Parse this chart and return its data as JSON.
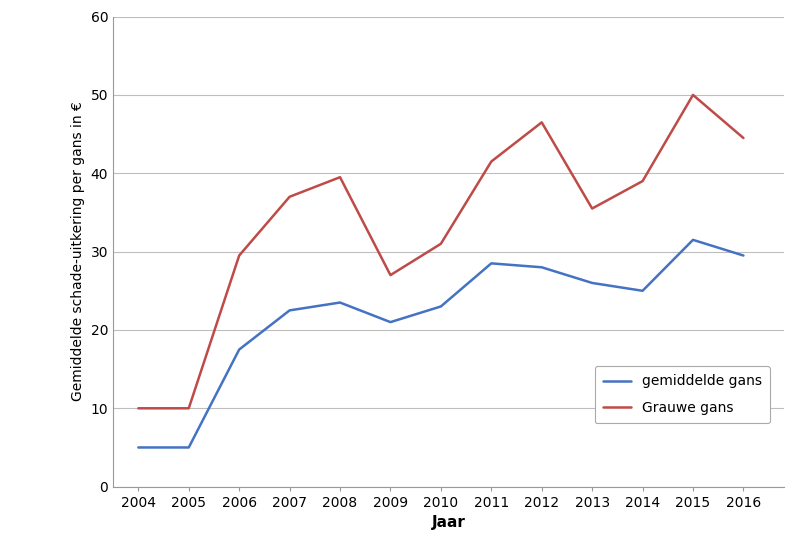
{
  "years": [
    2004,
    2005,
    2006,
    2007,
    2008,
    2009,
    2010,
    2011,
    2012,
    2013,
    2014,
    2015,
    2016
  ],
  "gemiddelde_gans": [
    5,
    5,
    17.5,
    22.5,
    23.5,
    21,
    23,
    28.5,
    28,
    26,
    25,
    31.5,
    29.5
  ],
  "grauwe_gans": [
    10,
    10,
    29.5,
    37,
    39.5,
    27,
    31,
    41.5,
    46.5,
    35.5,
    39,
    50,
    44.5
  ],
  "line_color_gemiddelde": "#4472C4",
  "line_color_grauwe": "#BE4B48",
  "ylabel": "Gemiddelde schade-uitkering per gans in €",
  "xlabel": "Jaar",
  "legend_gemiddelde": "gemiddelde gans",
  "legend_grauwe": "Grauwe gans",
  "ylim": [
    0,
    60
  ],
  "yticks": [
    0,
    10,
    20,
    30,
    40,
    50,
    60
  ],
  "background_color": "#FFFFFF",
  "grid_color": "#BEBEBE",
  "linewidth": 1.8,
  "tick_fontsize": 10,
  "label_fontsize": 11,
  "ylabel_fontsize": 10
}
